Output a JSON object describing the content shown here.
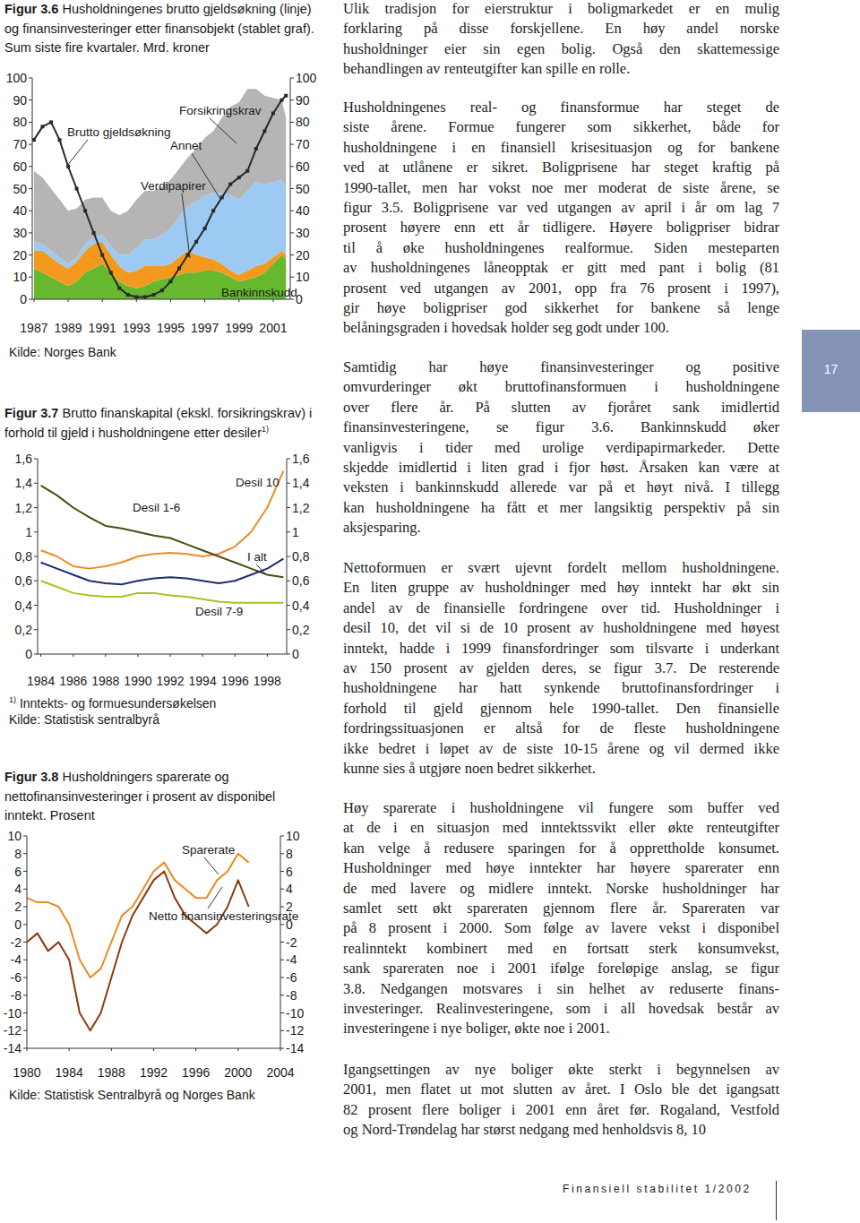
{
  "chart_data": [
    {
      "type": "area",
      "figure_label": "Figur 3.6",
      "title": "Husholdningenes brutto gjeldsøkning (linje) og finansinvesteringer etter finansobjekt (stablet graf). Sum siste fire kvartaler. Mrd. kroner",
      "source": "Kilde: Norges Bank",
      "stacked": true,
      "grid": false,
      "x": [
        1987,
        1987.5,
        1988,
        1988.5,
        1989,
        1989.5,
        1990,
        1990.5,
        1991,
        1991.5,
        1992,
        1992.5,
        1993,
        1993.5,
        1994,
        1994.5,
        1995,
        1995.5,
        1996,
        1996.5,
        1997,
        1997.5,
        1998,
        1998.5,
        1999,
        1999.5,
        2000,
        2000.5,
        2001,
        2001.5,
        2001.75
      ],
      "xlim": [
        1986.9,
        2002
      ],
      "xticks": [
        1987,
        1989,
        1991,
        1993,
        1995,
        1997,
        1999,
        2001
      ],
      "ylim": [
        0,
        100
      ],
      "yticks": [
        0,
        10,
        20,
        30,
        40,
        50,
        60,
        70,
        80,
        90,
        100
      ],
      "series": [
        {
          "name": "Bankinnskudd",
          "type": "area",
          "color": "#66b82e",
          "values": [
            14,
            12,
            10,
            8,
            6,
            8,
            12,
            14,
            16,
            12,
            8,
            6,
            5,
            6,
            8,
            9,
            10,
            11,
            12,
            12,
            13,
            13,
            12,
            10,
            8,
            9,
            10,
            12,
            16,
            20,
            18
          ]
        },
        {
          "name": "Verdipapirer",
          "type": "area",
          "color": "#f39a1e",
          "values": [
            8,
            10,
            9,
            8,
            8,
            9,
            10,
            11,
            10,
            8,
            7,
            6,
            8,
            9,
            7,
            6,
            6,
            8,
            10,
            8,
            6,
            5,
            4,
            3,
            3,
            4,
            5,
            4,
            3,
            2,
            2
          ]
        },
        {
          "name": "Annet",
          "type": "area",
          "color": "#9ccaf2",
          "values": [
            4,
            3,
            3,
            3,
            2,
            2,
            3,
            3,
            3,
            4,
            5,
            8,
            10,
            12,
            12,
            14,
            16,
            18,
            20,
            24,
            28,
            30,
            32,
            34,
            34,
            36,
            38,
            36,
            34,
            32,
            30
          ]
        },
        {
          "name": "Forsikringskrav",
          "type": "area",
          "color": "#b5b5b5",
          "values": [
            32,
            30,
            28,
            26,
            24,
            22,
            20,
            18,
            17,
            16,
            18,
            20,
            22,
            22,
            22,
            22,
            22,
            22,
            22,
            24,
            26,
            28,
            34,
            40,
            44,
            46,
            42,
            40,
            38,
            36,
            32
          ]
        },
        {
          "name": "Brutto gjeldsøkning",
          "type": "line",
          "color": "#2a2a2a",
          "marker": "square",
          "values": [
            72,
            78,
            80,
            72,
            60,
            50,
            40,
            30,
            20,
            12,
            5,
            2,
            1,
            1,
            2,
            4,
            8,
            14,
            20,
            26,
            32,
            40,
            46,
            52,
            55,
            58,
            68,
            76,
            84,
            90,
            92
          ]
        }
      ]
    },
    {
      "type": "line",
      "figure_label": "Figur 3.7",
      "title": "Brutto finanskapital (ekskl. forsikringskrav) i forhold til gjeld i husholdningene etter desiler",
      "title_note": "1)",
      "footnote": {
        "marker": "1)",
        "text": "Inntekts- og formuesundersøkelsen"
      },
      "source": "Kilde: Statistisk sentralbyrå",
      "grid": false,
      "x": [
        1984,
        1985,
        1986,
        1987,
        1988,
        1989,
        1990,
        1991,
        1992,
        1993,
        1994,
        1995,
        1996,
        1997,
        1998,
        1999
      ],
      "xlim": [
        1983.8,
        1999.2
      ],
      "xticks": [
        1984,
        1986,
        1988,
        1990,
        1992,
        1994,
        1996,
        1998
      ],
      "ylim": [
        0,
        1.6
      ],
      "yticks": [
        0,
        {
          "value": 0.2,
          "label": "0,2"
        },
        {
          "value": 0.4,
          "label": "0,4"
        },
        {
          "value": 0.6,
          "label": "0,6"
        },
        {
          "value": 0.8,
          "label": "0,8"
        },
        1,
        {
          "value": 1.2,
          "label": "1,2"
        },
        {
          "value": 1.4,
          "label": "1,4"
        },
        {
          "value": 1.6,
          "label": "1,6"
        }
      ],
      "series": [
        {
          "name": "Desil 10",
          "color": "#f08a24",
          "values": [
            0.85,
            0.8,
            0.72,
            0.7,
            0.72,
            0.75,
            0.8,
            0.82,
            0.83,
            0.82,
            0.8,
            0.82,
            0.88,
            1.0,
            1.2,
            1.5
          ]
        },
        {
          "name": "Desil 1-6",
          "color": "#4d4a12",
          "values": [
            1.38,
            1.3,
            1.2,
            1.12,
            1.05,
            1.03,
            1.0,
            0.97,
            0.95,
            0.9,
            0.85,
            0.8,
            0.75,
            0.7,
            0.65,
            0.63
          ]
        },
        {
          "name": "I alt",
          "color": "#1f2d6e",
          "values": [
            0.75,
            0.7,
            0.65,
            0.6,
            0.58,
            0.57,
            0.6,
            0.62,
            0.63,
            0.62,
            0.6,
            0.58,
            0.6,
            0.65,
            0.7,
            0.78
          ]
        },
        {
          "name": "Desil 7-9",
          "color": "#a9c224",
          "values": [
            0.6,
            0.55,
            0.5,
            0.48,
            0.47,
            0.47,
            0.5,
            0.5,
            0.48,
            0.47,
            0.45,
            0.43,
            0.42,
            0.42,
            0.42,
            0.42
          ]
        }
      ]
    },
    {
      "type": "line",
      "figure_label": "Figur 3.8",
      "title": "Husholdningers sparerate og nettofinansinvesteringer i prosent av disponibel inntekt. Prosent",
      "source": "Kilde: Statistisk Sentralbyrå og Norges Bank",
      "grid": false,
      "x": [
        1980,
        1981,
        1982,
        1983,
        1984,
        1985,
        1986,
        1987,
        1988,
        1989,
        1990,
        1991,
        1992,
        1993,
        1994,
        1995,
        1996,
        1997,
        1998,
        1999,
        2000,
        2001
      ],
      "xlim": [
        1980,
        2004
      ],
      "xticks": [
        1980,
        1984,
        1988,
        1992,
        1996,
        2000,
        2004
      ],
      "ylim": [
        -14,
        10
      ],
      "yticks": [
        -14,
        -12,
        -10,
        -8,
        -6,
        -4,
        -2,
        0,
        2,
        4,
        6,
        8,
        10
      ],
      "series": [
        {
          "name": "Sparerate",
          "color": "#ee8a22",
          "values": [
            3,
            2.5,
            2.5,
            2,
            0,
            -4,
            -6,
            -5,
            -2,
            1,
            2,
            4,
            6,
            7,
            5,
            4,
            3,
            3,
            5,
            6,
            8,
            7
          ]
        },
        {
          "name": "Netto finansinvesteringsrate",
          "color": "#8c3a12",
          "values": [
            -2,
            -1,
            -3,
            -2,
            -4,
            -10,
            -12,
            -10,
            -6,
            -2,
            1,
            3,
            5,
            6,
            3,
            1,
            0,
            -1,
            0,
            2,
            5,
            2
          ]
        }
      ]
    }
  ],
  "page": {
    "paragraphs": [
      [
        "Ulik tradisjon for eierstruktur i boligmarkedet er en mulig",
        "forklaring på disse forskjellene. En høy andel norske",
        "husholdninger eier sin egen bolig. Også den skattemessige",
        "behandlingen av renteutgifter kan spille en rolle."
      ],
      [
        "Husholdningenes real- og finansformue har steget de",
        "siste årene. Formue fungerer som sikkerhet, både for",
        "husholdningene i en finansiell krisesituasjon og for bankene",
        "ved at utlånene er sikret. Boligprisene har steget kraftig på",
        "1990-tallet, men har vokst noe mer moderat de siste årene, se",
        "figur 3.5. Boligprisene var ved utgangen av april i år om lag 7",
        "prosent høyere enn ett år tidligere. Høyere boligpriser bidrar",
        "til å øke husholdningenes realformue. Siden mesteparten",
        "av husholdningenes låneopptak er gitt med pant i bolig (81",
        "prosent ved utgangen av 2001, opp fra 76 prosent i 1997),",
        "gir høye boligpriser god sikkerhet for bankene så lenge",
        "belåningsgraden i hovedsak holder seg godt under 100."
      ],
      [
        "Samtidig har høye finansinvesteringer og positive",
        "omvurderinger økt bruttofinansformuen i husholdningene",
        "over flere år. På slutten av fjoråret sank imidlertid",
        "finansinvesteringene, se figur 3.6. Bankinnskudd øker",
        "vanligvis i tider med urolige verdipapirmarkeder. Dette",
        "skjedde imidlertid i liten grad i fjor høst. Årsaken kan være at",
        "veksten i bankinnskudd allerede var på et høyt nivå. I tillegg",
        "kan husholdningene ha fått et mer langsiktig perspektiv på sin",
        "aksjesparing."
      ],
      [
        "Nettoformuen er svært ujevnt fordelt mellom husholdningene.",
        "En liten gruppe av husholdninger med høy inntekt har økt sin",
        "andel av de finansielle fordringene over tid. Husholdninger i",
        "desil 10, det vil si de 10 prosent av husholdningene med høyest",
        "inntekt, hadde i 1999 finansfordringer som tilsvarte i underkant",
        "av 150 prosent av gjelden deres, se figur 3.7. De resterende",
        "husholdningene har hatt synkende bruttofinansfordringer i",
        "forhold til gjeld gjennom hele 1990-tallet. Den finansielle",
        "fordringssituasjonen er altså for de fleste husholdningene",
        "ikke bedret i løpet av de siste 10-15 årene og vil dermed ikke",
        "kunne sies å utgjøre noen bedret sikkerhet."
      ],
      [
        "Høy sparerate i husholdningene vil fungere som buffer ved",
        "at de i en situasjon med inntektssvikt eller økte renteutgifter",
        "kan velge å redusere sparingen for å opprettholde konsumet.",
        "Husholdninger med høye inntekter har høyere sparerater enn",
        "de med lavere og midlere inntekt. Norske husholdninger har",
        "samlet sett økt spareraten gjennom flere år. Spareraten var",
        "på 8 prosent i 2000. Som følge av lavere vekst i disponibel",
        "realinntekt kombinert med en fortsatt sterk konsumvekst,",
        "sank spareraten noe i 2001 ifølge foreløpige anslag, se figur",
        "3.8. Nedgangen motsvares i sin helhet av reduserte finans-",
        "investeringer. Realinvesteringene, som i all hovedsak består av",
        "investeringene i nye boliger, økte noe i 2001."
      ],
      [
        "Igangsettingen av nye boliger økte sterkt i begynnelsen av",
        "2001, men flatet ut mot slutten av året. I Oslo ble det igangsatt",
        "82 prosent flere boliger i 2001 enn året før. Rogaland, Vestfold",
        "og Nord-Trøndelag har størst nedgang med henholdsvis 8, 10"
      ]
    ],
    "page_number": "17",
    "footer": "Finansiell stabilitet 1/2002"
  }
}
